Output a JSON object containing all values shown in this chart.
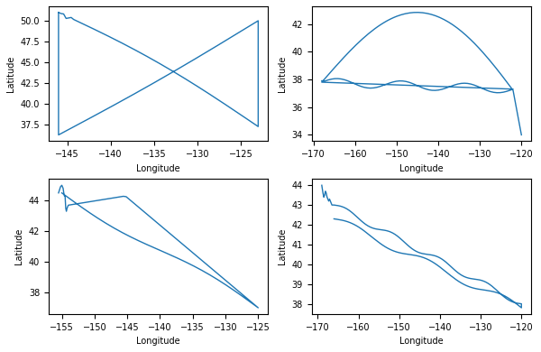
{
  "line_color": "#1f77b4",
  "line_width": 1.0,
  "figsize": [
    6.0,
    3.9
  ],
  "dpi": 100,
  "subplot_xlabel": "Longitude",
  "subplot_ylabel": "Latitude"
}
